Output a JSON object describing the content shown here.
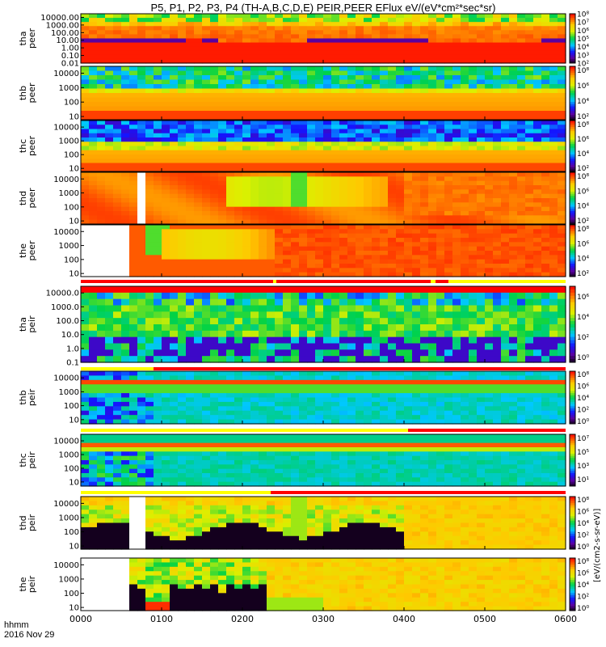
{
  "title": "P5, P1, P2, P3, P4 (TH-A,B,C,D,E) PEIR,PEER EFlux eV/(eV*cm²*sec*sr)",
  "time_row_label": "hhmm",
  "date_label": "2016 Nov 29",
  "colorbar_axis_label": "[eV/(cm2-s-sr-eV)]",
  "chart_data": [
    {
      "type": "heatmap",
      "panel_name": "panel-tha-peer",
      "ylabel": [
        "tha",
        "peer"
      ],
      "ytick_labels": [
        "10000.00",
        "1000.00",
        "100.00",
        "10.00",
        "1.00",
        "0.10",
        "0.01"
      ],
      "ytick_values": [
        10000,
        1000,
        100,
        10,
        1,
        0.1,
        0.01
      ],
      "ylim": [
        0.01,
        30000
      ],
      "yscale": "log",
      "colorbar_ticks": [
        "10⁸",
        "10⁷",
        "10⁶",
        "10⁵",
        "10⁴",
        "10³",
        "10²"
      ],
      "colorbar_range": [
        2,
        8
      ],
      "pattern": "tha-peer"
    },
    {
      "type": "heatmap",
      "panel_name": "panel-thb-peer",
      "ylabel": [
        "thb",
        "peer"
      ],
      "ytick_labels": [
        "10000",
        "1000",
        "100",
        "10"
      ],
      "ytick_values": [
        10000,
        1000,
        100,
        10
      ],
      "ylim": [
        6,
        30000
      ],
      "yscale": "log",
      "colorbar_ticks": [
        "10⁸",
        "10⁶",
        "10⁴",
        "10²"
      ],
      "colorbar_range": [
        1.5,
        8.5
      ],
      "pattern": "thb-peer"
    },
    {
      "type": "heatmap",
      "panel_name": "panel-thc-peer",
      "ylabel": [
        "thc",
        "peer"
      ],
      "ytick_labels": [
        "10000",
        "1000",
        "100",
        "10"
      ],
      "ytick_values": [
        10000,
        1000,
        100,
        10
      ],
      "ylim": [
        6,
        30000
      ],
      "yscale": "log",
      "colorbar_ticks": [
        "10⁸",
        "10⁶",
        "10⁴",
        "10²"
      ],
      "colorbar_range": [
        1.5,
        8.5
      ],
      "pattern": "thc-peer"
    },
    {
      "type": "heatmap",
      "panel_name": "panel-thd-peer",
      "ylabel": [
        "thd",
        "peer"
      ],
      "ytick_labels": [
        "10000",
        "1000",
        "100",
        "10"
      ],
      "ytick_values": [
        10000,
        1000,
        100,
        10
      ],
      "ylim": [
        6,
        30000
      ],
      "yscale": "log",
      "colorbar_ticks": [
        "10⁸",
        "10⁶",
        "10⁴",
        "10²"
      ],
      "colorbar_range": [
        1.5,
        8.5
      ],
      "pattern": "thd-peer"
    },
    {
      "type": "heatmap",
      "panel_name": "panel-the-peer",
      "ylabel": [
        "the",
        "peer"
      ],
      "ytick_labels": [
        "10000",
        "1000",
        "100",
        "10"
      ],
      "ytick_values": [
        10000,
        1000,
        100,
        10
      ],
      "ylim": [
        6,
        30000
      ],
      "yscale": "log",
      "colorbar_ticks": [
        "10⁸",
        "10⁶",
        "10⁴",
        "10²"
      ],
      "colorbar_range": [
        1.5,
        8.5
      ],
      "pattern": "the-peer"
    },
    {
      "type": "heatmap",
      "panel_name": "panel-tha-peir",
      "ylabel": [
        "tha",
        "peir"
      ],
      "ytick_labels": [
        "10000.0",
        "1000.0",
        "100.0",
        "10.0",
        "1.0",
        "0.1"
      ],
      "ytick_values": [
        10000,
        1000,
        100,
        10,
        1,
        0.1
      ],
      "ylim": [
        0.1,
        30000
      ],
      "yscale": "log",
      "colorbar_ticks": [
        "10⁶",
        "10⁴",
        "10²",
        "10⁰"
      ],
      "colorbar_range": [
        -0.5,
        7
      ],
      "pattern": "tha-peir"
    },
    {
      "type": "heatmap",
      "panel_name": "panel-thb-peir",
      "ylabel": [
        "thb",
        "peir"
      ],
      "ytick_labels": [
        "10000",
        "1000",
        "100",
        "10"
      ],
      "ytick_values": [
        10000,
        1000,
        100,
        10
      ],
      "ylim": [
        5,
        30000
      ],
      "yscale": "log",
      "colorbar_ticks": [
        "10⁸",
        "10⁶",
        "10⁴",
        "10²",
        "10⁰"
      ],
      "colorbar_range": [
        -0.5,
        8.5
      ],
      "pattern": "thb-peir"
    },
    {
      "type": "heatmap",
      "panel_name": "panel-thc-peir",
      "ylabel": [
        "thc",
        "peir"
      ],
      "ytick_labels": [
        "10000",
        "1000",
        "100",
        "10"
      ],
      "ytick_values": [
        10000,
        1000,
        100,
        10
      ],
      "ylim": [
        5,
        30000
      ],
      "yscale": "log",
      "colorbar_ticks": [
        "10⁷",
        "10⁵",
        "10³",
        "10¹"
      ],
      "colorbar_range": [
        0,
        7.5
      ],
      "pattern": "thc-peir"
    },
    {
      "type": "heatmap",
      "panel_name": "panel-thd-peir",
      "ylabel": [
        "thd",
        "peir"
      ],
      "ytick_labels": [
        "10000",
        "1000",
        "100",
        "10"
      ],
      "ytick_values": [
        10000,
        1000,
        100,
        10
      ],
      "ylim": [
        6,
        30000
      ],
      "yscale": "log",
      "colorbar_ticks": [
        "10⁸",
        "10⁶",
        "10⁴",
        "10²",
        "10⁰"
      ],
      "colorbar_range": [
        -0.5,
        8.5
      ],
      "pattern": "thd-peir"
    },
    {
      "type": "heatmap",
      "panel_name": "panel-the-peir",
      "ylabel": [
        "the",
        "peir"
      ],
      "ytick_labels": [
        "10000",
        "1000",
        "100",
        "10"
      ],
      "ytick_values": [
        10000,
        1000,
        100,
        10
      ],
      "ylim": [
        6,
        30000
      ],
      "yscale": "log",
      "colorbar_ticks": [
        "10⁸",
        "10⁶",
        "10⁴",
        "10²",
        "10⁰"
      ],
      "colorbar_range": [
        -0.5,
        8.5
      ],
      "pattern": "the-peir"
    }
  ],
  "x_axis": {
    "tick_labels": [
      "0000",
      "0100",
      "0200",
      "0300",
      "0400",
      "0500",
      "0600"
    ],
    "tick_values_hours": [
      0,
      1,
      2,
      3,
      4,
      5,
      6
    ],
    "xlim_hours": [
      0,
      6
    ]
  },
  "mode_bars": [
    {
      "name": "mode-bar-1",
      "segments": [
        {
          "start": 0.0,
          "end": 2.38,
          "color": "#ff0000"
        },
        {
          "start": 2.38,
          "end": 2.42,
          "color": "#ffff00"
        },
        {
          "start": 2.42,
          "end": 4.33,
          "color": "#ff0000"
        },
        {
          "start": 4.33,
          "end": 4.39,
          "color": "#ffff00"
        },
        {
          "start": 4.39,
          "end": 4.55,
          "color": "#ff0000"
        },
        {
          "start": 4.55,
          "end": 6.0,
          "color": "#ffff00"
        }
      ]
    },
    {
      "name": "mode-bar-2",
      "segments": [
        {
          "start": 0.0,
          "end": 0.9,
          "color": "#ffff00"
        },
        {
          "start": 0.9,
          "end": 6.0,
          "color": "#ff0000"
        }
      ]
    },
    {
      "name": "mode-bar-3",
      "segments": [
        {
          "start": 0.0,
          "end": 4.05,
          "color": "#ffff00"
        },
        {
          "start": 4.05,
          "end": 6.0,
          "color": "#ff0000"
        }
      ]
    },
    {
      "name": "mode-bar-4",
      "segments": [
        {
          "start": 0.0,
          "end": 2.35,
          "color": "#ffff00"
        },
        {
          "start": 2.35,
          "end": 6.0,
          "color": "#ff0000"
        }
      ]
    }
  ]
}
